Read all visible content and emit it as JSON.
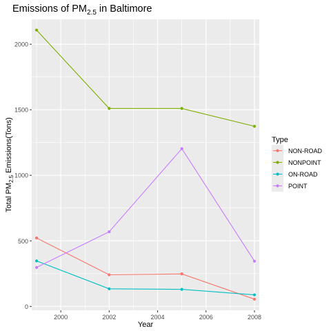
{
  "chart_data": {
    "type": "line",
    "title": "Emissions of PM",
    "title_subscript": "2.5",
    "title_suffix": " in Baltimore",
    "xlabel": "Year",
    "ylabel": "Total PM",
    "ylabel_subscript": "2.5",
    "ylabel_suffix": " Emissions(Tons)",
    "x": [
      1999,
      2002,
      2005,
      2008
    ],
    "xlim": [
      1998.8,
      2008.2
    ],
    "ylim": [
      -30,
      2190
    ],
    "x_ticks": [
      2000,
      2002,
      2004,
      2006,
      2008
    ],
    "x_tick_labels": [
      "2000",
      "2002",
      "2004",
      "2006",
      "2008"
    ],
    "y_ticks": [
      0,
      500,
      1000,
      1500,
      2000
    ],
    "y_tick_labels": [
      "0",
      "500",
      "1000",
      "1500",
      "2000"
    ],
    "grid": true,
    "background": "#ebebeb",
    "legend_title": "Type",
    "legend_position": "right",
    "series": [
      {
        "name": "NON-ROAD",
        "color": "#f8766d",
        "values": [
          522,
          241,
          248,
          55
        ]
      },
      {
        "name": "NONPOINT",
        "color": "#7cae00",
        "values": [
          2108,
          1510,
          1510,
          1374
        ]
      },
      {
        "name": "ON-ROAD",
        "color": "#00bfc4",
        "values": [
          347,
          134,
          130,
          88
        ]
      },
      {
        "name": "POINT",
        "color": "#c77cff",
        "values": [
          297,
          569,
          1203,
          345
        ]
      }
    ]
  }
}
